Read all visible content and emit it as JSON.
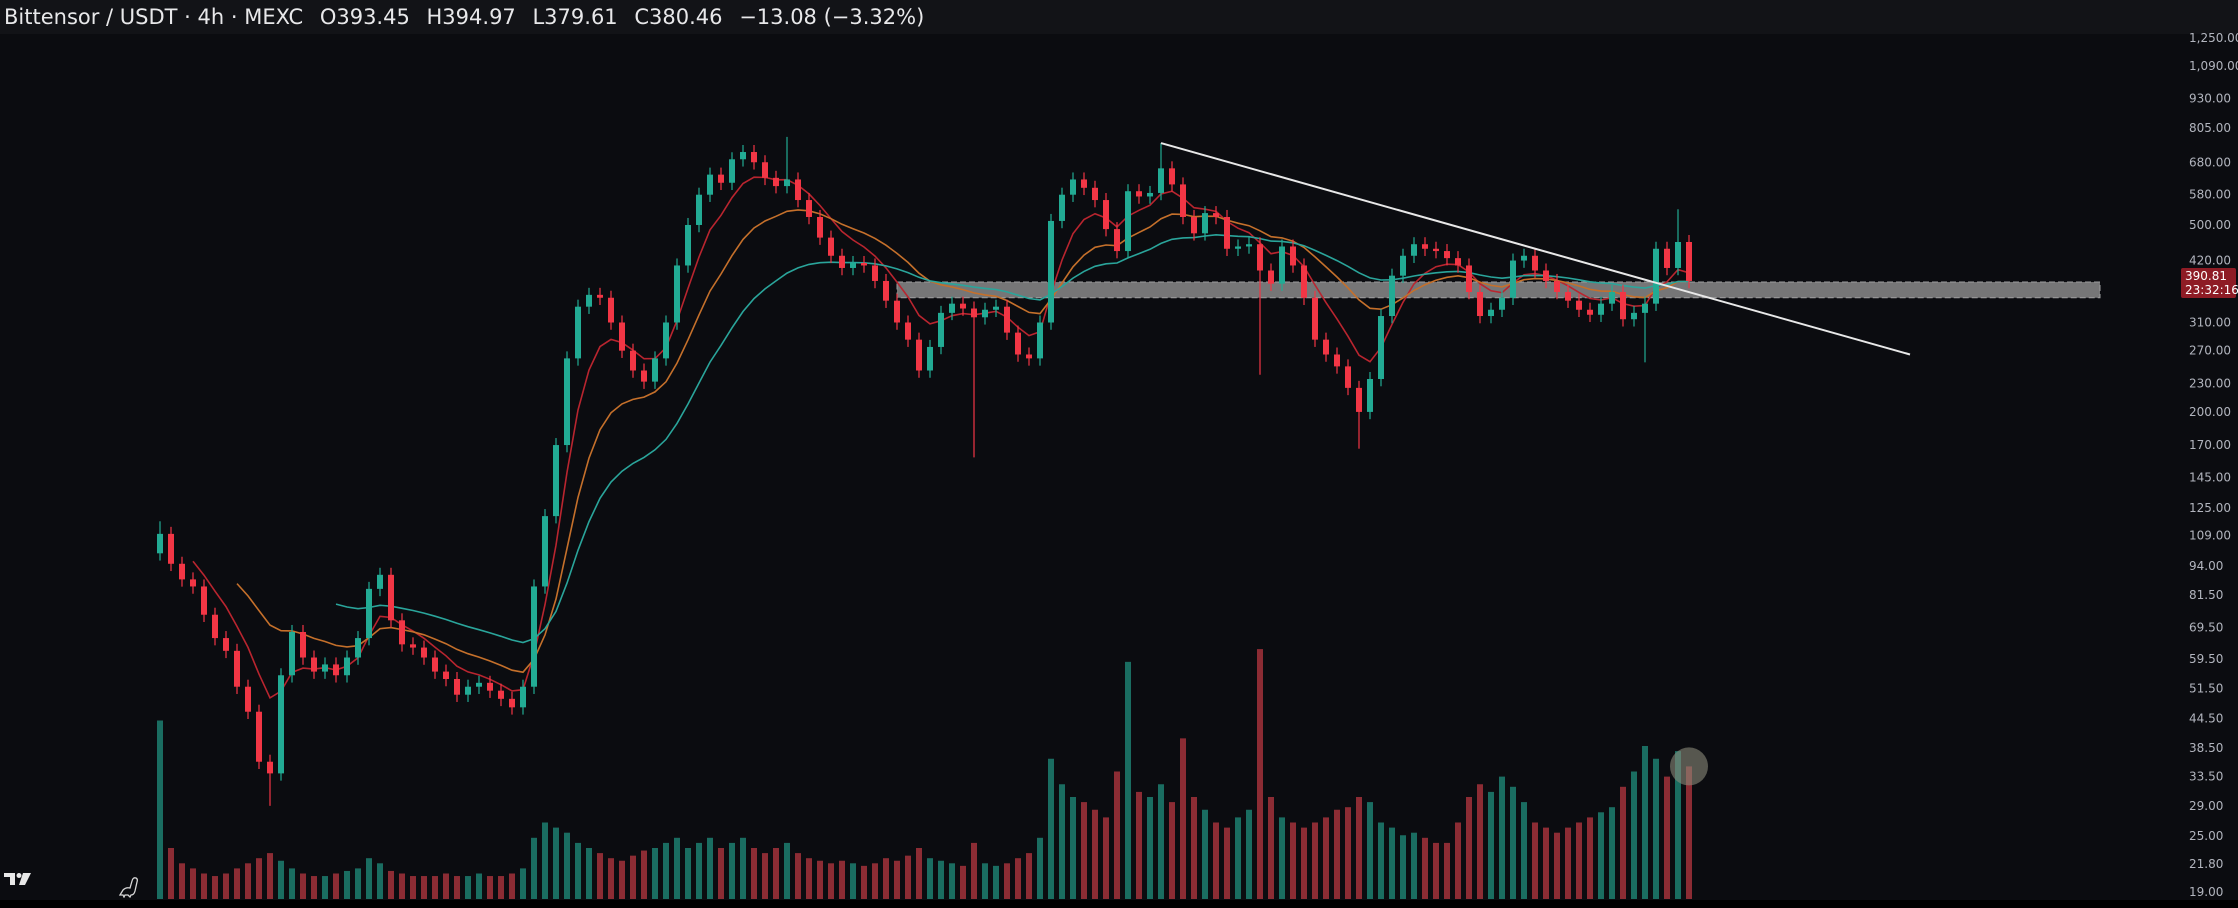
{
  "header": {
    "symbol": "Bittensor / USDT · 4h · MEXC",
    "open": "O393.45",
    "high": "H394.97",
    "low": "L379.61",
    "close": "C380.46",
    "change": "−13.08 (−3.32%)"
  },
  "price_tag": {
    "price": "390.81",
    "countdown": "23:32:16",
    "color": "#8e1c25"
  },
  "logo": "TradingView",
  "icons": [
    "tradingview-logo-icon",
    "dino-icon"
  ],
  "colors": {
    "up": "#22ab94",
    "down": "#f23645",
    "background": "#0b0c10",
    "ema_fast": "#b9252f",
    "ema_mid": "#c5702b",
    "ema_slow": "#2aa59b",
    "zone": "#9a9a9a",
    "trendline": "#e8e8e8"
  },
  "chart_data": {
    "type": "candlestick",
    "title": "Bittensor / USDT · 4h · MEXC",
    "yscale": "log",
    "ylim": [
      19,
      1250
    ],
    "grid": false,
    "y_ticks": [
      "1,250.00",
      "1,090.00",
      "930.00",
      "805.00",
      "680.00",
      "580.00",
      "500.00",
      "420.00",
      "310.00",
      "270.00",
      "230.00",
      "200.00",
      "170.00",
      "145.00",
      "125.00",
      "109.00",
      "94.00",
      "81.50",
      "69.50",
      "59.50",
      "51.50",
      "44.50",
      "38.50",
      "33.50",
      "29.00",
      "25.00",
      "21.80",
      "19.00"
    ],
    "y_tick_values": [
      1250,
      1090,
      930,
      805,
      680,
      580,
      500,
      420,
      310,
      270,
      230,
      200,
      170,
      145,
      125,
      109,
      94,
      81.5,
      69.5,
      59.5,
      51.5,
      44.5,
      38.5,
      33.5,
      29,
      25,
      21.8,
      19
    ],
    "first_open": 100,
    "close": [
      110,
      95,
      88,
      85,
      74,
      66,
      62,
      52,
      46,
      36,
      34,
      55,
      68,
      60,
      56,
      58,
      55,
      60,
      66,
      84,
      90,
      72,
      64,
      63,
      60,
      56,
      54,
      50,
      52,
      53,
      51,
      49,
      47,
      52,
      85,
      120,
      170,
      260,
      335,
      355,
      350,
      310,
      270,
      245,
      232,
      260,
      310,
      410,
      500,
      580,
      640,
      615,
      690,
      715,
      680,
      630,
      605,
      625,
      565,
      520,
      470,
      430,
      405,
      415,
      410,
      380,
      345,
      310,
      285,
      245,
      275,
      325,
      340,
      332,
      318,
      330,
      335,
      295,
      265,
      260,
      310,
      510,
      580,
      625,
      600,
      565,
      490,
      440,
      590,
      575,
      585,
      660,
      610,
      520,
      480,
      530,
      520,
      445,
      450,
      455,
      400,
      375,
      450,
      410,
      350,
      285,
      265,
      250,
      225,
      200,
      235,
      320,
      390,
      430,
      455,
      445,
      440,
      425,
      410,
      360,
      320,
      330,
      350,
      420,
      430,
      400,
      380,
      360,
      345,
      330,
      322,
      340,
      360,
      315,
      325,
      340,
      445,
      405,
      460,
      380
    ],
    "notable_extremes": [
      {
        "index": 0,
        "high": 117
      },
      {
        "index": 10,
        "low": 29
      },
      {
        "index": 57,
        "high": 770
      },
      {
        "index": 74,
        "low": 160
      },
      {
        "index": 91,
        "high": 747
      },
      {
        "index": 100,
        "low": 240
      },
      {
        "index": 109,
        "low": 167
      },
      {
        "index": 135,
        "low": 255
      },
      {
        "index": 138,
        "high": 540
      }
    ],
    "volume_relative": [
      70,
      20,
      14,
      12,
      10,
      9,
      10,
      12,
      14,
      16,
      18,
      15,
      12,
      10,
      9,
      9,
      10,
      11,
      12,
      16,
      14,
      11,
      10,
      9,
      9,
      9,
      10,
      9,
      9,
      10,
      9,
      9,
      10,
      12,
      24,
      30,
      28,
      26,
      22,
      20,
      18,
      16,
      15,
      17,
      19,
      20,
      22,
      24,
      20,
      22,
      24,
      20,
      22,
      24,
      20,
      18,
      20,
      22,
      18,
      16,
      15,
      14,
      15,
      14,
      13,
      14,
      16,
      15,
      17,
      20,
      16,
      15,
      14,
      13,
      22,
      14,
      13,
      14,
      16,
      18,
      24,
      55,
      45,
      40,
      38,
      35,
      32,
      50,
      93,
      42,
      40,
      45,
      38,
      63,
      40,
      35,
      30,
      28,
      32,
      35,
      98,
      40,
      32,
      30,
      28,
      30,
      32,
      35,
      36,
      40,
      38,
      30,
      28,
      25,
      26,
      24,
      22,
      22,
      30,
      40,
      45,
      42,
      48,
      44,
      38,
      30,
      28,
      26,
      28,
      30,
      32,
      34,
      36,
      44,
      50,
      60,
      55,
      48,
      58,
      52
    ],
    "emas": [
      "ema_fast",
      "ema_mid",
      "ema_slow"
    ],
    "trendline": {
      "from": {
        "index": 91,
        "price": 747
      },
      "to_price": 265
    },
    "zone": {
      "from_index": 67,
      "price_low": 350,
      "price_high": 378
    },
    "highlight": {
      "index": 139,
      "on": "volume"
    }
  }
}
